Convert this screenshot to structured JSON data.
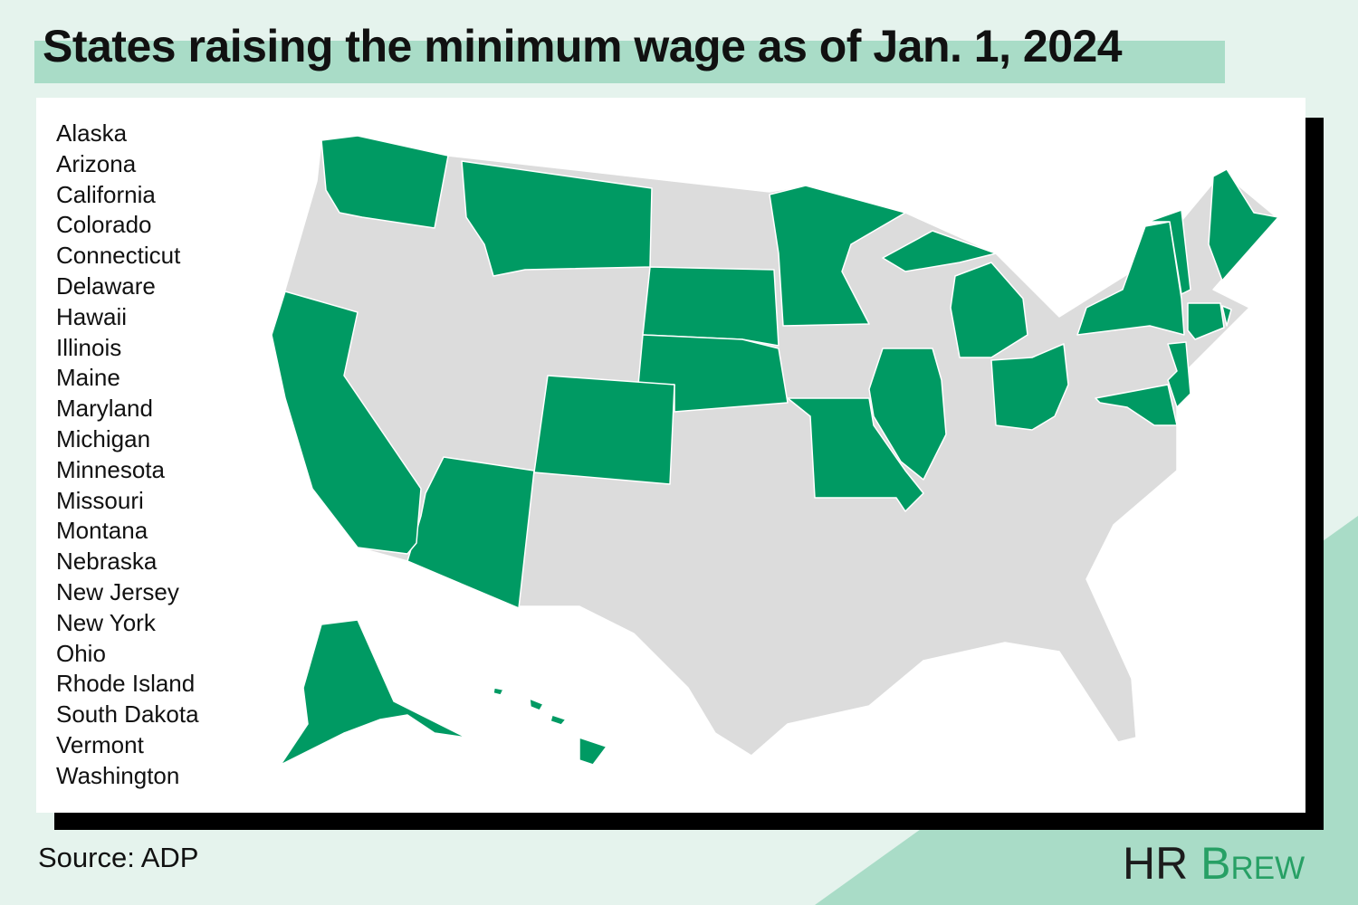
{
  "title": "States raising the minimum wage as of Jan. 1, 2024",
  "states": [
    "Alaska",
    "Arizona",
    "California",
    "Colorado",
    "Connecticut",
    "Delaware",
    "Hawaii",
    "Illinois",
    "Maine",
    "Maryland",
    "Michigan",
    "Minnesota",
    "Missouri",
    "Montana",
    "Nebraska",
    "New Jersey",
    "New York",
    "Ohio",
    "Rhode Island",
    "South Dakota",
    "Vermont",
    "Washington"
  ],
  "source": "Source: ADP",
  "logo": {
    "left": "HR",
    "right": "Brew"
  }
}
